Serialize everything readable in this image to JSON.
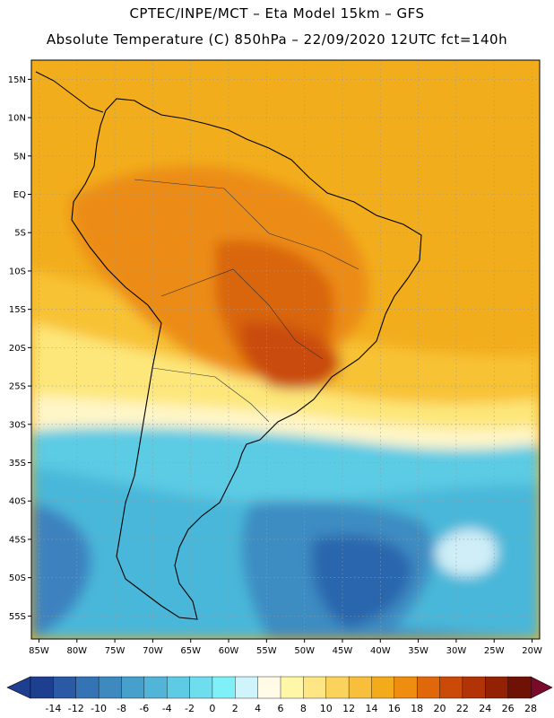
{
  "titles": {
    "line1": "CPTEC/INPE/MCT –  Eta Model 15km – GFS",
    "line2": "Absolute Temperature (C) 850hPa – 22/09/2020 12UTC fct=140h"
  },
  "map": {
    "lon_range": [
      -86,
      -19
    ],
    "lat_range": [
      -58,
      17.5
    ],
    "lat_labels": [
      {
        "v": 15,
        "t": "15N"
      },
      {
        "v": 10,
        "t": "10N"
      },
      {
        "v": 5,
        "t": "5N"
      },
      {
        "v": 0,
        "t": "EQ"
      },
      {
        "v": -5,
        "t": "5S"
      },
      {
        "v": -10,
        "t": "10S"
      },
      {
        "v": -15,
        "t": "15S"
      },
      {
        "v": -20,
        "t": "20S"
      },
      {
        "v": -25,
        "t": "25S"
      },
      {
        "v": -30,
        "t": "30S"
      },
      {
        "v": -35,
        "t": "35S"
      },
      {
        "v": -40,
        "t": "40S"
      },
      {
        "v": -45,
        "t": "45S"
      },
      {
        "v": -50,
        "t": "50S"
      },
      {
        "v": -55,
        "t": "55S"
      }
    ],
    "lon_labels": [
      {
        "v": -85,
        "t": "85W"
      },
      {
        "v": -80,
        "t": "80W"
      },
      {
        "v": -75,
        "t": "75W"
      },
      {
        "v": -70,
        "t": "70W"
      },
      {
        "v": -65,
        "t": "65W"
      },
      {
        "v": -60,
        "t": "60W"
      },
      {
        "v": -55,
        "t": "55W"
      },
      {
        "v": -50,
        "t": "50W"
      },
      {
        "v": -45,
        "t": "45W"
      },
      {
        "v": -40,
        "t": "40W"
      },
      {
        "v": -35,
        "t": "35W"
      },
      {
        "v": -30,
        "t": "30W"
      },
      {
        "v": -25,
        "t": "25W"
      },
      {
        "v": -20,
        "t": "20W"
      }
    ],
    "temperature_zones": [
      {
        "name": "north-ocean-background",
        "temp": 18
      },
      {
        "name": "south-atlantic-subtropical",
        "temp": 14
      },
      {
        "name": "southern-ocean-cold",
        "temp": 0
      },
      {
        "name": "deep-southern-ocean",
        "temp": -6
      },
      {
        "name": "amazon-warm-core",
        "temp": 22
      },
      {
        "name": "central-brazil-hot-core",
        "temp": 24
      }
    ]
  },
  "colorbar": {
    "ticks": [
      "-14",
      "-12",
      "-10",
      "-8",
      "-6",
      "-4",
      "-2",
      "0",
      "2",
      "4",
      "6",
      "8",
      "10",
      "12",
      "14",
      "16",
      "18",
      "20",
      "22",
      "24",
      "26",
      "28"
    ],
    "colors": [
      "#1e3f8f",
      "#2a5aa3",
      "#3473b4",
      "#3d89c0",
      "#47a0cc",
      "#52b5d8",
      "#5fcae3",
      "#6edded",
      "#7ff0f7",
      "#cff4fb",
      "#fffbe6",
      "#fff7a8",
      "#fde683",
      "#fbd35c",
      "#f7bf3c",
      "#f3aa1b",
      "#ee8d10",
      "#e0680a",
      "#cc4a07",
      "#b23306",
      "#932205",
      "#6f1104"
    ],
    "under_color": "#1e3f8f",
    "over_color": "#7a0a2a"
  }
}
